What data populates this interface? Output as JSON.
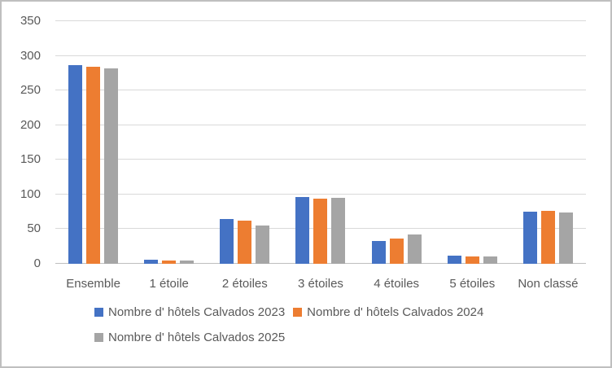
{
  "chart_data": {
    "type": "bar",
    "title": "",
    "categories": [
      "Ensemble",
      "1 étoile",
      "2 étoiles",
      "3 étoiles",
      "4 étoiles",
      "5 étoiles",
      "Non classé"
    ],
    "series": [
      {
        "name": "Nombre d' hôtels Calvados 2023",
        "color": "#4472C4",
        "values": [
          287,
          6,
          65,
          96,
          33,
          12,
          75
        ]
      },
      {
        "name": "Nombre d' hôtels Calvados 2024",
        "color": "#ED7D31",
        "values": [
          284,
          5,
          62,
          94,
          36,
          11,
          76
        ]
      },
      {
        "name": "Nombre d' hôtels Calvados 2025",
        "color": "#A5A5A5",
        "values": [
          282,
          5,
          55,
          95,
          42,
          11,
          74
        ]
      }
    ],
    "ylim": [
      0,
      350
    ],
    "yticks": [
      0,
      50,
      100,
      150,
      200,
      250,
      300,
      350
    ],
    "grid": true,
    "legend_position": "bottom",
    "legend_rows": [
      [
        0,
        1
      ],
      [
        2
      ]
    ],
    "colors": {
      "axis_text": "#595959",
      "gridline": "#D9D9D9",
      "axis_line": "#BFBFBF",
      "border": "#BFBFBF",
      "background": "#FFFFFF"
    }
  }
}
